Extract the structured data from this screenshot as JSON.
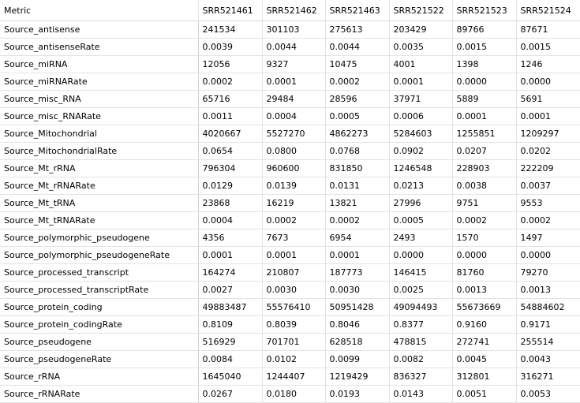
{
  "table": {
    "columns": [
      "Metric",
      "SRR521461",
      "SRR521462",
      "SRR521463",
      "SRR521522",
      "SRR521523",
      "SRR521524"
    ],
    "rows": [
      [
        "Source_antisense",
        "241534",
        "301103",
        "275613",
        "203429",
        "89766",
        "87671"
      ],
      [
        "Source_antisenseRate",
        "0.0039",
        "0.0044",
        "0.0044",
        "0.0035",
        "0.0015",
        "0.0015"
      ],
      [
        "Source_miRNA",
        "12056",
        "9327",
        "10475",
        "4001",
        "1398",
        "1246"
      ],
      [
        "Source_miRNARate",
        "0.0002",
        "0.0001",
        "0.0002",
        "0.0001",
        "0.0000",
        "0.0000"
      ],
      [
        "Source_misc_RNA",
        "65716",
        "29484",
        "28596",
        "37971",
        "5889",
        "5691"
      ],
      [
        "Source_misc_RNARate",
        "0.0011",
        "0.0004",
        "0.0005",
        "0.0006",
        "0.0001",
        "0.0001"
      ],
      [
        "Source_Mitochondrial",
        "4020667",
        "5527270",
        "4862273",
        "5284603",
        "1255851",
        "1209297"
      ],
      [
        "Source_MitochondrialRate",
        "0.0654",
        "0.0800",
        "0.0768",
        "0.0902",
        "0.0207",
        "0.0202"
      ],
      [
        "Source_Mt_rRNA",
        "796304",
        "960600",
        "831850",
        "1246548",
        "228903",
        "222209"
      ],
      [
        "Source_Mt_rRNARate",
        "0.0129",
        "0.0139",
        "0.0131",
        "0.0213",
        "0.0038",
        "0.0037"
      ],
      [
        "Source_Mt_tRNA",
        "23868",
        "16219",
        "13821",
        "27996",
        "9751",
        "9553"
      ],
      [
        "Source_Mt_tRNARate",
        "0.0004",
        "0.0002",
        "0.0002",
        "0.0005",
        "0.0002",
        "0.0002"
      ],
      [
        "Source_polymorphic_pseudogene",
        "4356",
        "7673",
        "6954",
        "2493",
        "1570",
        "1497"
      ],
      [
        "Source_polymorphic_pseudogeneRate",
        "0.0001",
        "0.0001",
        "0.0001",
        "0.0000",
        "0.0000",
        "0.0000"
      ],
      [
        "Source_processed_transcript",
        "164274",
        "210807",
        "187773",
        "146415",
        "81760",
        "79270"
      ],
      [
        "Source_processed_transcriptRate",
        "0.0027",
        "0.0030",
        "0.0030",
        "0.0025",
        "0.0013",
        "0.0013"
      ],
      [
        "Source_protein_coding",
        "49883487",
        "55576410",
        "50951428",
        "49094493",
        "55673669",
        "54884602"
      ],
      [
        "Source_protein_codingRate",
        "0.8109",
        "0.8039",
        "0.8046",
        "0.8377",
        "0.9160",
        "0.9171"
      ],
      [
        "Source_pseudogene",
        "516929",
        "701701",
        "628518",
        "478815",
        "272741",
        "255514"
      ],
      [
        "Source_pseudogeneRate",
        "0.0084",
        "0.0102",
        "0.0099",
        "0.0082",
        "0.0045",
        "0.0043"
      ],
      [
        "Source_rRNA",
        "1645040",
        "1244407",
        "1219429",
        "836327",
        "312801",
        "316271"
      ],
      [
        "Source_rRNARate",
        "0.0267",
        "0.0180",
        "0.0193",
        "0.0143",
        "0.0051",
        "0.0053"
      ]
    ]
  }
}
